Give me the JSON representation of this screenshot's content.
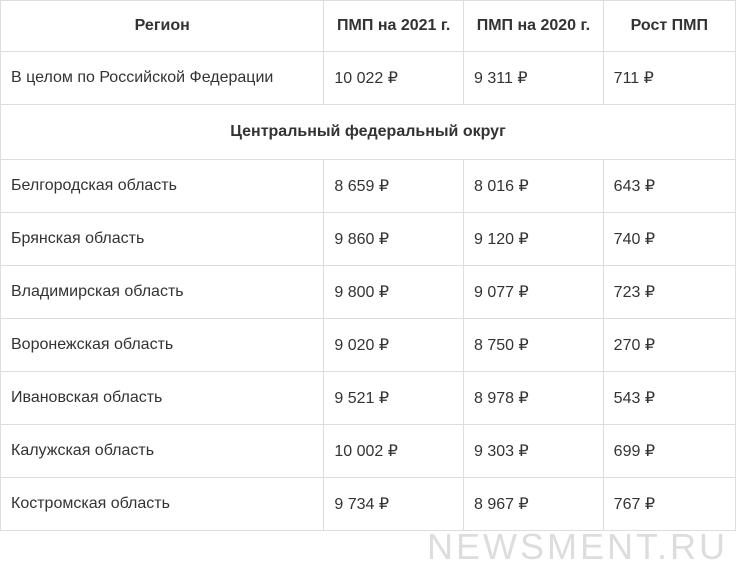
{
  "table": {
    "headers": {
      "region": "Регион",
      "pmp2021": "ПМП на 2021 г.",
      "pmp2020": "ПМП на 2020 г.",
      "growth": "Рост ПМП"
    },
    "summary_row": {
      "region": "В целом по Российской Федерации",
      "pmp2021": "10 022 ₽",
      "pmp2020": "9 311 ₽",
      "growth": "711 ₽"
    },
    "section_title": "Центральный федеральный округ",
    "rows": [
      {
        "region": "Белгородская область",
        "pmp2021": "8 659 ₽",
        "pmp2020": "8 016 ₽",
        "growth": "643 ₽"
      },
      {
        "region": "Брянская область",
        "pmp2021": "9 860 ₽",
        "pmp2020": "9 120 ₽",
        "growth": "740 ₽"
      },
      {
        "region": "Владимирская область",
        "pmp2021": "9 800 ₽",
        "pmp2020": "9 077 ₽",
        "growth": "723 ₽"
      },
      {
        "region": "Воронежская область",
        "pmp2021": "9 020 ₽",
        "pmp2020": "8 750 ₽",
        "growth": "270 ₽"
      },
      {
        "region": "Ивановская область",
        "pmp2021": "9 521 ₽",
        "pmp2020": "8 978 ₽",
        "growth": "543 ₽"
      },
      {
        "region": "Калужская область",
        "pmp2021": "10 002 ₽",
        "pmp2020": "9 303 ₽",
        "growth": "699 ₽"
      },
      {
        "region": "Костромская область",
        "pmp2021": "9 734 ₽",
        "pmp2020": "8 967 ₽",
        "growth": "767 ₽"
      }
    ]
  },
  "watermark": "NEWSMENT.RU"
}
